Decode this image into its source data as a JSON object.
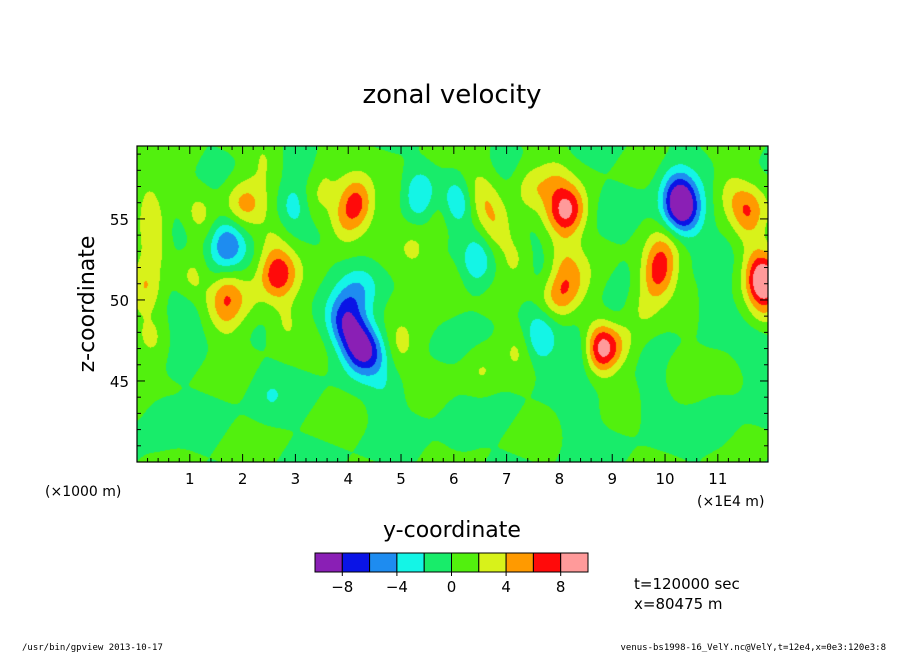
{
  "chart_data": {
    "type": "heatmap",
    "title": "zonal velocity",
    "xlabel": "y-coordinate",
    "ylabel": "z-coordinate",
    "x_unit_left": "(×1000 m)",
    "x_unit_right": "(×1E4 m)",
    "xlim": [
      0,
      11.95
    ],
    "ylim": [
      40,
      59.5
    ],
    "x_ticks": [
      "1",
      "2",
      "3",
      "4",
      "5",
      "6",
      "7",
      "8",
      "9",
      "10",
      "11"
    ],
    "y_ticks": [
      "45",
      "50",
      "55"
    ],
    "x_tick_values": [
      1,
      2,
      3,
      4,
      5,
      6,
      7,
      8,
      9,
      10,
      11
    ],
    "y_tick_values": [
      45,
      50,
      55
    ],
    "background_level": 0,
    "levels": [
      -10,
      -8,
      -6,
      -4,
      -2,
      0,
      2,
      4,
      6,
      8,
      10
    ],
    "level_colors": [
      "#8a1fb5",
      "#0a14e6",
      "#1e8cf0",
      "#14f5e6",
      "#18ec6a",
      "#52f00e",
      "#d8f21a",
      "#ff9a00",
      "#ff0a0a",
      "#ff9a9a"
    ],
    "colorbar_labels": [
      "−8",
      "−4",
      "0",
      "4",
      "8"
    ],
    "colorbar_label_values": [
      -8,
      -4,
      0,
      4,
      8
    ],
    "blobs": [
      {
        "x": 0.2,
        "z": 56.3,
        "v": 2
      },
      {
        "x": 0.25,
        "z": 54.8,
        "v": 2.5
      },
      {
        "x": 0.35,
        "z": 52.8,
        "v": 2
      },
      {
        "x": 0.15,
        "z": 50.9,
        "v": 4.5
      },
      {
        "x": 0.3,
        "z": 47.5,
        "v": 2.5
      },
      {
        "x": 0.8,
        "z": 54.2,
        "v": -2
      },
      {
        "x": 1.15,
        "z": 55.5,
        "v": 2.5
      },
      {
        "x": 1.05,
        "z": 51.5,
        "v": 2.8
      },
      {
        "x": 0.9,
        "z": 49.3,
        "v": -2
      },
      {
        "x": 1.45,
        "z": 51.2,
        "v": -1.8
      },
      {
        "x": 1.7,
        "z": 53.5,
        "v": -5.5
      },
      {
        "x": 1.65,
        "z": 50.5,
        "v": 4.8
      },
      {
        "x": 1.7,
        "z": 48.9,
        "v": 2.5
      },
      {
        "x": 1.9,
        "z": 56.0,
        "v": 2.8
      },
      {
        "x": 2.15,
        "z": 56.0,
        "v": 2.5
      },
      {
        "x": 2.1,
        "z": 50.0,
        "v": 2
      },
      {
        "x": 2.4,
        "z": 58.5,
        "v": 2
      },
      {
        "x": 2.55,
        "z": 53.6,
        "v": 2
      },
      {
        "x": 2.6,
        "z": 51.5,
        "v": 5
      },
      {
        "x": 2.8,
        "z": 51.8,
        "v": 2.5
      },
      {
        "x": 2.8,
        "z": 48.6,
        "v": 2.5
      },
      {
        "x": 2.95,
        "z": 55.9,
        "v": -3.5
      },
      {
        "x": 3.5,
        "z": 58.6,
        "v": 2.2
      },
      {
        "x": 3.4,
        "z": 56.2,
        "v": 2.2
      },
      {
        "x": 3.9,
        "z": 54.8,
        "v": 3.5
      },
      {
        "x": 4.15,
        "z": 56.0,
        "v": 6
      },
      {
        "x": 4.05,
        "z": 50.2,
        "v": -2.5
      },
      {
        "x": 3.85,
        "z": 48.8,
        "v": -4
      },
      {
        "x": 4.05,
        "z": 48.0,
        "v": -4.5
      },
      {
        "x": 4.25,
        "z": 47.0,
        "v": -7
      },
      {
        "x": 4.55,
        "z": 46.6,
        "v": -2.5
      },
      {
        "x": 4.95,
        "z": 47.1,
        "v": 2.8
      },
      {
        "x": 4.3,
        "z": 51.0,
        "v": -1.8
      },
      {
        "x": 5.05,
        "z": 56.5,
        "v": 2.3
      },
      {
        "x": 5.3,
        "z": 56.5,
        "v": -4.5
      },
      {
        "x": 5.25,
        "z": 53.0,
        "v": 2.2
      },
      {
        "x": 5.75,
        "z": 55.7,
        "v": 2.3
      },
      {
        "x": 6.05,
        "z": 56.0,
        "v": -5
      },
      {
        "x": 5.85,
        "z": 51.2,
        "v": 2.5
      },
      {
        "x": 6.4,
        "z": 57.2,
        "v": 2
      },
      {
        "x": 6.6,
        "z": 56.1,
        "v": 2.5
      },
      {
        "x": 6.75,
        "z": 54.3,
        "v": 3.5
      },
      {
        "x": 6.5,
        "z": 53.8,
        "v": -2
      },
      {
        "x": 6.45,
        "z": 52.2,
        "v": -3
      },
      {
        "x": 6.5,
        "z": 45.6,
        "v": 2
      },
      {
        "x": 7.15,
        "z": 52.8,
        "v": 2.5
      },
      {
        "x": 7.25,
        "z": 47.2,
        "v": 2.2
      },
      {
        "x": 7.6,
        "z": 47.6,
        "v": -4.5
      },
      {
        "x": 7.45,
        "z": 57.0,
        "v": 3
      },
      {
        "x": 7.9,
        "z": 57.5,
        "v": 2.5
      },
      {
        "x": 7.95,
        "z": 55.2,
        "v": 3.5
      },
      {
        "x": 8.2,
        "z": 55.6,
        "v": 6
      },
      {
        "x": 8.05,
        "z": 52.5,
        "v": 2.5
      },
      {
        "x": 7.8,
        "z": 50.3,
        "v": 2.5
      },
      {
        "x": 7.75,
        "z": 51.5,
        "v": -2
      },
      {
        "x": 8.05,
        "z": 50.4,
        "v": 4.5
      },
      {
        "x": 8.35,
        "z": 51.2,
        "v": 2
      },
      {
        "x": 8.4,
        "z": 47.0,
        "v": -2.5
      },
      {
        "x": 8.85,
        "z": 47.2,
        "v": 3.5
      },
      {
        "x": 8.75,
        "z": 46.9,
        "v": 5.5
      },
      {
        "x": 9.05,
        "z": 48.5,
        "v": -2
      },
      {
        "x": 9.15,
        "z": 47.6,
        "v": 2.5
      },
      {
        "x": 9.6,
        "z": 49.6,
        "v": 2.2
      },
      {
        "x": 9.85,
        "z": 51.5,
        "v": 6
      },
      {
        "x": 9.95,
        "z": 53.0,
        "v": 3.5
      },
      {
        "x": 10.2,
        "z": 57.3,
        "v": -2.5
      },
      {
        "x": 10.25,
        "z": 55.5,
        "v": -3.5
      },
      {
        "x": 10.3,
        "z": 56.0,
        "v": -7
      },
      {
        "x": 10.5,
        "z": 55.0,
        "v": -2
      },
      {
        "x": 11.2,
        "z": 56.8,
        "v": 2.5
      },
      {
        "x": 11.55,
        "z": 55.5,
        "v": 5
      },
      {
        "x": 11.85,
        "z": 51.5,
        "v": 4.5
      },
      {
        "x": 11.85,
        "z": 51.0,
        "v": 6
      },
      {
        "x": 11.85,
        "z": 49.0,
        "v": 2.5
      },
      {
        "x": 11.75,
        "z": 46.9,
        "v": -2
      },
      {
        "x": 11.65,
        "z": 53.0,
        "v": 2
      },
      {
        "x": 10.9,
        "z": 49.7,
        "v": -1.8
      },
      {
        "x": 10.3,
        "z": 45.5,
        "v": 1.8
      },
      {
        "x": 4.7,
        "z": 44.0,
        "v": -1.5
      },
      {
        "x": 0.4,
        "z": 42.5,
        "v": -1.5
      },
      {
        "x": 8.35,
        "z": 42.7,
        "v": -1.5
      },
      {
        "x": 11.0,
        "z": 42.5,
        "v": -1.6
      },
      {
        "x": 2.5,
        "z": 44.2,
        "v": -1.5
      },
      {
        "x": 9.8,
        "z": 43.8,
        "v": -1.5
      },
      {
        "x": 6.1,
        "z": 42.0,
        "v": -1.5
      },
      {
        "x": 3.2,
        "z": 58.8,
        "v": -1.5
      }
    ]
  },
  "annotation": {
    "time": "t=120000 sec",
    "position": "x=80475 m"
  },
  "footer": {
    "left": "/usr/bin/gpview  2013-10-17",
    "right": "venus-bs1998-16_VelY.nc@VelY,t=12e4,x=0e3:120e3:8"
  }
}
